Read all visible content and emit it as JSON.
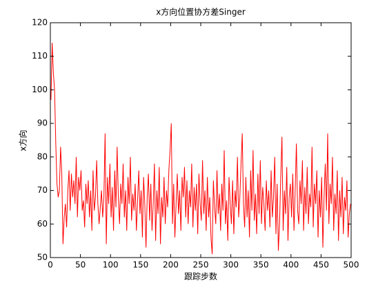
{
  "chart_data": {
    "type": "line",
    "title": "x方向位置协方差Singer",
    "xlabel": "跟踪步数",
    "ylabel": "x方向",
    "xlim": [
      0,
      500
    ],
    "ylim": [
      50,
      120
    ],
    "xticks": [
      0,
      50,
      100,
      150,
      200,
      250,
      300,
      350,
      400,
      450,
      500
    ],
    "yticks": [
      50,
      60,
      70,
      80,
      90,
      100,
      110,
      120
    ],
    "grid": false,
    "x": [
      1,
      3,
      5,
      7,
      9,
      11,
      13,
      15,
      17,
      19,
      21,
      23,
      25,
      27,
      29,
      31,
      33,
      35,
      37,
      39,
      41,
      43,
      45,
      47,
      49,
      51,
      53,
      55,
      57,
      59,
      61,
      63,
      65,
      67,
      69,
      71,
      73,
      75,
      77,
      79,
      81,
      83,
      85,
      87,
      89,
      91,
      93,
      95,
      97,
      99,
      101,
      103,
      105,
      107,
      109,
      111,
      113,
      115,
      117,
      119,
      121,
      123,
      125,
      127,
      129,
      131,
      133,
      135,
      137,
      139,
      141,
      143,
      145,
      147,
      149,
      151,
      153,
      155,
      157,
      159,
      161,
      163,
      165,
      167,
      169,
      171,
      173,
      175,
      177,
      179,
      181,
      183,
      185,
      187,
      189,
      191,
      193,
      195,
      197,
      199,
      201,
      203,
      205,
      207,
      209,
      211,
      213,
      215,
      217,
      219,
      221,
      223,
      225,
      227,
      229,
      231,
      233,
      235,
      237,
      239,
      241,
      243,
      245,
      247,
      249,
      251,
      253,
      255,
      257,
      259,
      261,
      263,
      265,
      267,
      269,
      271,
      273,
      275,
      277,
      279,
      281,
      283,
      285,
      287,
      289,
      291,
      293,
      295,
      297,
      299,
      301,
      303,
      305,
      307,
      309,
      311,
      313,
      315,
      317,
      319,
      321,
      323,
      325,
      327,
      329,
      331,
      333,
      335,
      337,
      339,
      341,
      343,
      345,
      347,
      349,
      351,
      353,
      355,
      357,
      359,
      361,
      363,
      365,
      367,
      369,
      371,
      373,
      375,
      377,
      379,
      381,
      383,
      385,
      387,
      389,
      391,
      393,
      395,
      397,
      399,
      401,
      403,
      405,
      407,
      409,
      411,
      413,
      415,
      417,
      419,
      421,
      423,
      425,
      427,
      429,
      431,
      433,
      435,
      437,
      439,
      441,
      443,
      445,
      447,
      449,
      451,
      453,
      455,
      457,
      459,
      461,
      463,
      465,
      467,
      469,
      471,
      473,
      475,
      477,
      479,
      481,
      483,
      485,
      487,
      489,
      491,
      493,
      495,
      497,
      499
    ],
    "series": [
      {
        "color": "#ff0000",
        "values": [
          97,
          114,
          105,
          100,
          84,
          72,
          68,
          70,
          83,
          75,
          54,
          62,
          66,
          59,
          70,
          76,
          64,
          75,
          68,
          73,
          66,
          80,
          62,
          74,
          70,
          76,
          64,
          67,
          59,
          72,
          66,
          73,
          62,
          70,
          58,
          76,
          64,
          68,
          79,
          66,
          60,
          65,
          70,
          62,
          68,
          87,
          54,
          74,
          66,
          78,
          62,
          71,
          58,
          76,
          65,
          83,
          68,
          60,
          72,
          66,
          78,
          62,
          70,
          58,
          74,
          66,
          80,
          61,
          69,
          64,
          72,
          58,
          67,
          76,
          63,
          70,
          56,
          74,
          66,
          53,
          68,
          75,
          61,
          72,
          58,
          66,
          78,
          55,
          70,
          63,
          77,
          54,
          68,
          62,
          74,
          60,
          70,
          65,
          76,
          82,
          90,
          60,
          72,
          56,
          66,
          75,
          63,
          70,
          58,
          74,
          68,
          77,
          62,
          73,
          60,
          70,
          65,
          78,
          59,
          71,
          64,
          72,
          57,
          75,
          66,
          61,
          79,
          63,
          70,
          58,
          74,
          62,
          68,
          56,
          51,
          73,
          65,
          60,
          76,
          63,
          69,
          58,
          72,
          64,
          82,
          60,
          67,
          55,
          74,
          66,
          60,
          73,
          57,
          70,
          65,
          80,
          62,
          68,
          78,
          87,
          66,
          59,
          74,
          62,
          70,
          56,
          76,
          64,
          82,
          61,
          69,
          57,
          75,
          63,
          79,
          60,
          71,
          66,
          58,
          73,
          64,
          70,
          59,
          76,
          62,
          68,
          80,
          57,
          72,
          52,
          60,
          74,
          86,
          58,
          70,
          63,
          77,
          55,
          68,
          72,
          62,
          75,
          58,
          70,
          84,
          64,
          60,
          73,
          66,
          79,
          58,
          71,
          63,
          77,
          60,
          69,
          65,
          83,
          59,
          72,
          66,
          76,
          56,
          70,
          62,
          74,
          53,
          68,
          78,
          64,
          87,
          60,
          72,
          66,
          80,
          58,
          69,
          63,
          76,
          55,
          70,
          62,
          74,
          57,
          68,
          64,
          73,
          56,
          63,
          66
        ]
      }
    ]
  }
}
